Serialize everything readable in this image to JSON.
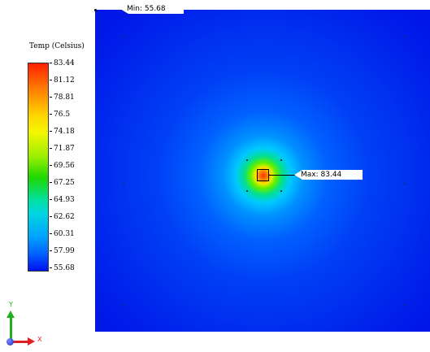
{
  "legend": {
    "title": "Temp (Celsius)",
    "labels": [
      "83.44",
      "81.12",
      "78.81",
      "76.5",
      "74.18",
      "71.87",
      "69.56",
      "67.25",
      "64.93",
      "62.62",
      "60.31",
      "57.99",
      "55.68"
    ]
  },
  "callouts": {
    "min_text": "Min: 55.68",
    "max_text": "Max: 83.44"
  },
  "axes": {
    "x_label": "X",
    "y_label": "Y"
  },
  "colors": {
    "field_background": "#0010e0",
    "hotspot": "#ff3000",
    "x_axis": "#e02020",
    "y_axis": "#20b020"
  }
}
